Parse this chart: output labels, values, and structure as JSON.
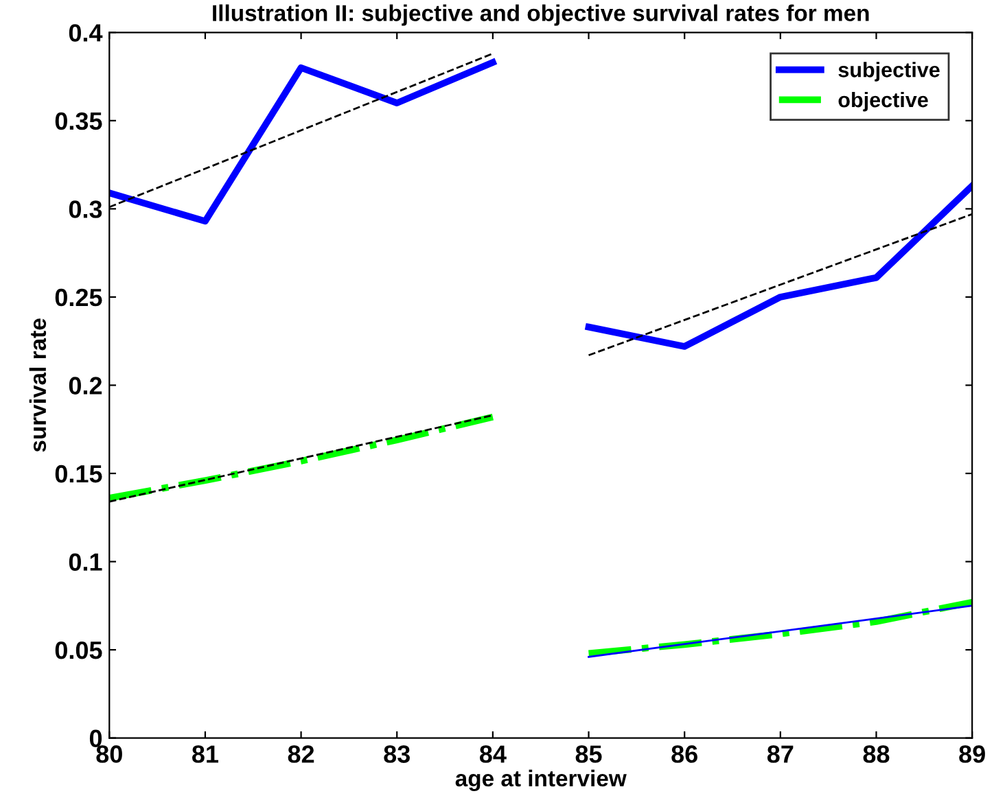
{
  "chart_data": {
    "type": "line",
    "title": "Illustration II: subjective and objective survival rates for men",
    "xlabel": "age at interview",
    "ylabel": "survival rate",
    "x": [
      80,
      81,
      82,
      83,
      84,
      84.5,
      85,
      86,
      87,
      88,
      89
    ],
    "series": [
      {
        "name": "subjective",
        "color": "#0000ff",
        "line_style": "solid",
        "values": [
          0.309,
          0.293,
          0.38,
          0.36,
          0.383,
          null,
          0.233,
          0.222,
          0.25,
          0.261,
          0.313
        ]
      },
      {
        "name": "objective",
        "color": "#00ff00",
        "line_style": "dashdot",
        "values": [
          0.136,
          0.146,
          0.157,
          0.169,
          0.182,
          null,
          0.048,
          0.053,
          0.059,
          0.066,
          0.077
        ]
      },
      {
        "color": "#000000",
        "line_style": "dashed",
        "x": [
          80,
          84
        ],
        "values": [
          0.301,
          0.388
        ]
      },
      {
        "color": "#000000",
        "line_style": "dashed",
        "x": [
          85,
          89
        ],
        "values": [
          0.217,
          0.297
        ]
      },
      {
        "color": "#000000",
        "line_style": "dashed",
        "x": [
          80,
          84
        ],
        "values": [
          0.134,
          0.183
        ]
      },
      {
        "color": "#0000ff",
        "line_style": "solid",
        "x": [
          85,
          89
        ],
        "values": [
          0.046,
          0.075
        ]
      }
    ],
    "xlim": [
      80,
      89
    ],
    "xticks": [
      80,
      81,
      82,
      83,
      84,
      85,
      86,
      87,
      88,
      89
    ],
    "ylim": [
      0,
      0.4
    ],
    "yticks": [
      0,
      0.05,
      0.1,
      0.15,
      0.2,
      0.25,
      0.3,
      0.35,
      0.4
    ],
    "grid": false,
    "legend": "top right",
    "marker": "none"
  }
}
